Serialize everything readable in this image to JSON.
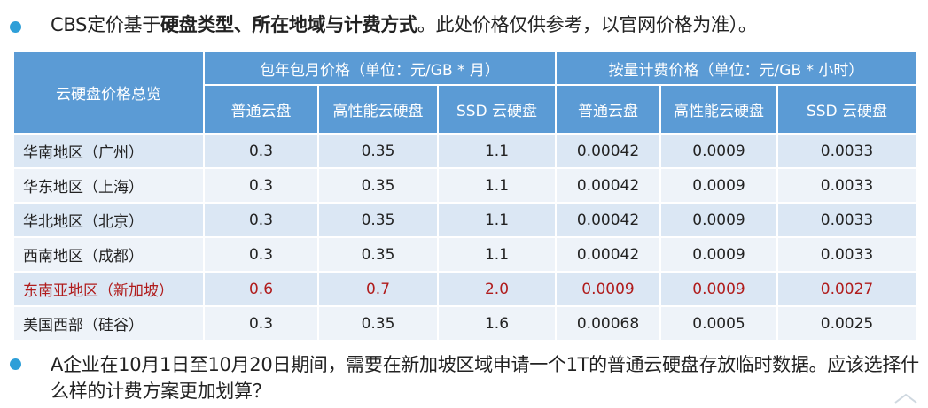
{
  "bullet_1": {
    "segments": [
      "CBS定价基于",
      "硬盘类型、所在地域与计费方式",
      "。此处价格仅供参考，以官网价格为准）。"
    ]
  },
  "table": {
    "corner": "云硬盘价格总览",
    "groups": [
      "包年包月价格（单位：元/GB * 月）",
      "按量计费价格（单位：元/GB * 小时）"
    ],
    "columns": [
      "普通云盘",
      "高性能云硬盘",
      "SSD 云硬盘",
      "普通云盘",
      "高性能云硬盘",
      "SSD 云硬盘"
    ],
    "rows": [
      [
        "华南地区（广州）",
        "0.3",
        "0.35",
        "1.1",
        "0.00042",
        "0.0009",
        "0.0033"
      ],
      [
        "华东地区（上海）",
        "0.3",
        "0.35",
        "1.1",
        "0.00042",
        "0.0009",
        "0.0033"
      ],
      [
        "华北地区（北京）",
        "0.3",
        "0.35",
        "1.1",
        "0.00042",
        "0.0009",
        "0.0033"
      ],
      [
        "西南地区（成都）",
        "0.3",
        "0.35",
        "1.1",
        "0.00042",
        "0.0009",
        "0.0033"
      ],
      [
        "东南亚地区（新加坡）",
        "0.6",
        "0.7",
        "2.0",
        "0.0009",
        "0.0009",
        "0.0027"
      ],
      [
        "美国西部（硅谷）",
        "0.3",
        "0.35",
        "1.6",
        "0.00068",
        "0.0005",
        "0.0025"
      ]
    ]
  },
  "bullet_2": {
    "text": "A企业在10月1日至10月20日期间，需要在新加坡区域申请一个1T的普通云硬盘存放临时数据。应该选择什么样的计费方案更加划算？"
  }
}
